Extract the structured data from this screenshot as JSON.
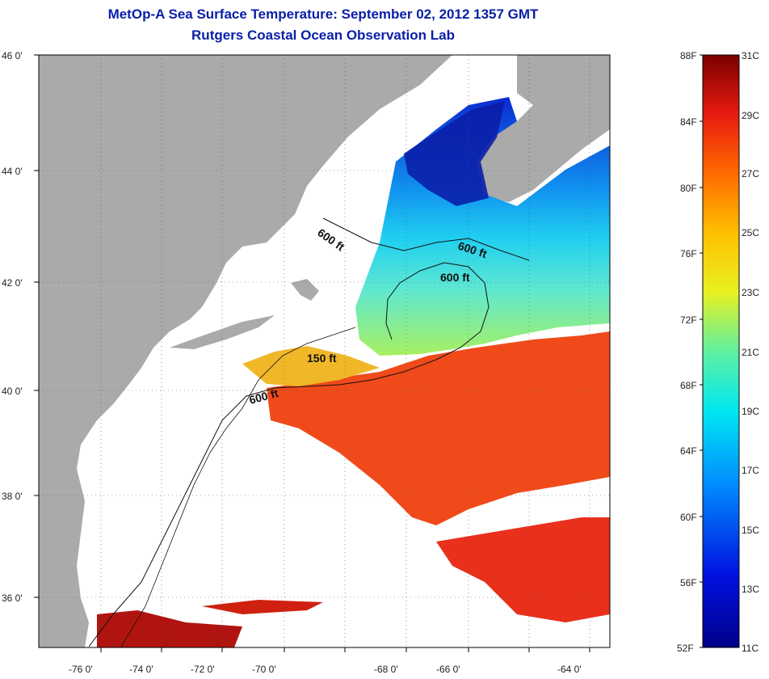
{
  "title": "MetOp-A Sea Surface Temperature:  September 02, 2012 1357 GMT",
  "subtitle": "Rutgers Coastal Ocean Observation Lab",
  "map": {
    "lat_labels": [
      "46 0'",
      "44 0'",
      "42 0'",
      "40 0'",
      "38 0'",
      "36 0'"
    ],
    "lon_labels": [
      "-76 0'",
      "-74 0'",
      "-72 0'",
      "-70 0'",
      "-68 0'",
      "-66 0'",
      "-64 0'"
    ],
    "contour_labels": [
      "600 ft",
      "600 ft",
      "600 ft",
      "150 ft",
      "600 ft"
    ],
    "colors": {
      "land": "#aaaaaa",
      "cloud": "#ffffff",
      "cold": "#0a1ea8",
      "warm": "#e8281a"
    }
  },
  "colorbar": {
    "fahrenheit_labels": [
      "88F",
      "84F",
      "80F",
      "76F",
      "72F",
      "68F",
      "64F",
      "60F",
      "56F",
      "52F"
    ],
    "celsius_labels": [
      "31C",
      "29C",
      "27C",
      "25C",
      "23C",
      "21C",
      "19C",
      "17C",
      "15C",
      "13C",
      "11C"
    ]
  }
}
